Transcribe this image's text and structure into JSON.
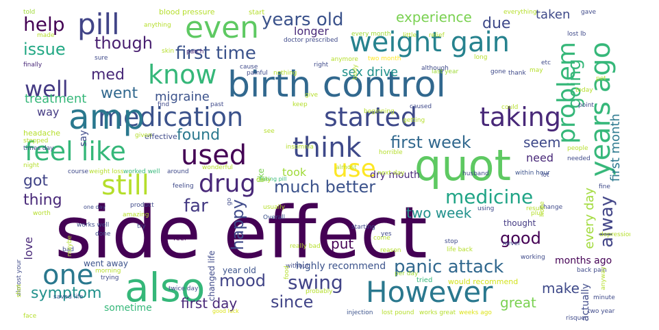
{
  "words": [
    {
      "text": "side effect",
      "color": "#440154"
    },
    {
      "text": "birth control",
      "color": "#31688e"
    },
    {
      "text": "medication",
      "color": "#3b528b"
    },
    {
      "text": "weight gain",
      "color": "#26828e"
    },
    {
      "text": "amp",
      "color": "#2a788e"
    },
    {
      "text": "quot",
      "color": "#5ec962"
    },
    {
      "text": "problem",
      "color": "#35b779"
    },
    {
      "text": "also",
      "color": "#35b779"
    },
    {
      "text": "However",
      "color": "#2a788e"
    },
    {
      "text": "started",
      "color": "#3e4989"
    },
    {
      "text": "taking",
      "color": "#482878"
    },
    {
      "text": "used",
      "color": "#440154"
    },
    {
      "text": "feel like",
      "color": "#35b779"
    },
    {
      "text": "pill",
      "color": "#414487"
    },
    {
      "text": "even",
      "color": "#5ec962"
    },
    {
      "text": "still",
      "color": "#b5de2b"
    },
    {
      "text": "drug",
      "color": "#482878"
    },
    {
      "text": "know",
      "color": "#35b779"
    },
    {
      "text": "well",
      "color": "#443a83"
    },
    {
      "text": "think",
      "color": "#3e4989"
    },
    {
      "text": "years ago",
      "color": "#35b779"
    },
    {
      "text": "use",
      "color": "#fde725"
    },
    {
      "text": "medicine",
      "color": "#20a486"
    },
    {
      "text": "one",
      "color": "#2a788e"
    },
    {
      "text": "panic attack",
      "color": "#31688e"
    },
    {
      "text": "first time",
      "color": "#3b528b"
    },
    {
      "text": "help",
      "color": "#440154"
    },
    {
      "text": "mood",
      "color": "#414487"
    },
    {
      "text": "swing",
      "color": "#414487"
    },
    {
      "text": "much better",
      "color": "#3b528b"
    },
    {
      "text": "symptom",
      "color": "#21918c"
    },
    {
      "text": "since",
      "color": "#414487"
    },
    {
      "text": "years old",
      "color": "#3b528b"
    },
    {
      "text": "though",
      "color": "#481f70"
    },
    {
      "text": "going",
      "color": "#35b779"
    },
    {
      "text": "alway",
      "color": "#414487"
    },
    {
      "text": "happy",
      "color": "#3e4989"
    },
    {
      "text": "first week",
      "color": "#31688e"
    },
    {
      "text": "issue",
      "color": "#22a884"
    },
    {
      "text": "found",
      "color": "#2a788e"
    },
    {
      "text": "far",
      "color": "#443a83"
    },
    {
      "text": "got",
      "color": "#414487"
    },
    {
      "text": "thing",
      "color": "#482878"
    },
    {
      "text": "good",
      "color": "#440154"
    },
    {
      "text": "due",
      "color": "#3e4989"
    },
    {
      "text": "med",
      "color": "#482878"
    },
    {
      "text": "went",
      "color": "#31688e"
    },
    {
      "text": "seem",
      "color": "#3e4989"
    },
    {
      "text": "two week",
      "color": "#21918c"
    },
    {
      "text": "experience",
      "color": "#7ad151"
    },
    {
      "text": "taken",
      "color": "#3e4989"
    },
    {
      "text": "first day",
      "color": "#482878"
    },
    {
      "text": "sex drive",
      "color": "#21918c"
    },
    {
      "text": "migraine",
      "color": "#3b528b"
    },
    {
      "text": "treatment",
      "color": "#35b779"
    },
    {
      "text": "make",
      "color": "#3e4989"
    },
    {
      "text": "great",
      "color": "#7ad151"
    },
    {
      "text": "put",
      "color": "#440154"
    },
    {
      "text": "love",
      "color": "#482878"
    },
    {
      "text": "say",
      "color": "#3e4989"
    },
    {
      "text": "took",
      "color": "#a0da39"
    },
    {
      "text": "need",
      "color": "#482878"
    },
    {
      "text": "first month",
      "color": "#2a788e"
    },
    {
      "text": "every day",
      "color": "#a0da39"
    },
    {
      "text": "longer",
      "color": "#482878"
    },
    {
      "text": "way",
      "color": "#443a83"
    },
    {
      "text": "highly recommend",
      "color": "#3b528b"
    },
    {
      "text": "sometime",
      "color": "#35b779"
    },
    {
      "text": "actually",
      "color": "#3e4989"
    },
    {
      "text": "months ago",
      "color": "#440154"
    },
    {
      "text": "headache",
      "color": "#b5de2b"
    },
    {
      "text": "effective",
      "color": "#3e4989"
    },
    {
      "text": "feel",
      "color": "#440154"
    },
    {
      "text": "like",
      "color": "#7ad151"
    },
    {
      "text": "dry mouth",
      "color": "#482878"
    },
    {
      "text": "thought",
      "color": "#443a83"
    },
    {
      "text": "changed life",
      "color": "#3e4989"
    },
    {
      "text": "year old",
      "color": "#3b528b"
    },
    {
      "text": "went away",
      "color": "#3b528b"
    },
    {
      "text": "blood pressure",
      "color": "#b5de2b"
    },
    {
      "text": "start",
      "color": "#b5de2b"
    },
    {
      "text": "doctor prescribed",
      "color": "#3e4989"
    },
    {
      "text": "weight loss",
      "color": "#b5de2b"
    },
    {
      "text": "worked well",
      "color": "#35b779"
    },
    {
      "text": "Overall",
      "color": "#3b528b"
    },
    {
      "text": "would recommend",
      "color": "#d2e21b"
    },
    {
      "text": "tried",
      "color": "#35b779"
    },
    {
      "text": "back pain",
      "color": "#3e4989"
    },
    {
      "text": "two year",
      "color": "#3e4989"
    },
    {
      "text": "good luck",
      "color": "#dde318"
    },
    {
      "text": "injection",
      "color": "#3b528b"
    },
    {
      "text": "lost pound",
      "color": "#b5de2b"
    },
    {
      "text": "works great",
      "color": "#b5de2b"
    },
    {
      "text": "weeks ago",
      "color": "#dde318"
    },
    {
      "text": "twice day",
      "color": "#3e4989"
    },
    {
      "text": "within hour",
      "color": "#3b528b"
    },
    {
      "text": "next day",
      "color": "#b5de2b"
    },
    {
      "text": "one day",
      "color": "#3e4989"
    },
    {
      "text": "works well",
      "color": "#3e4989"
    },
    {
      "text": "saved life",
      "color": "#3b528b"
    },
    {
      "text": "taking pill",
      "color": "#35b779"
    },
    {
      "text": "per day",
      "color": "#a0da39"
    },
    {
      "text": "really bad",
      "color": "#b5de2b"
    },
    {
      "text": "last year",
      "color": "#a0da39"
    },
    {
      "text": "every month",
      "color": "#a0da39"
    },
    {
      "text": "lost lb",
      "color": "#3e4989"
    },
    {
      "text": "two month",
      "color": "#fde725"
    },
    {
      "text": "told",
      "color": "#a0da39"
    },
    {
      "text": "made",
      "color": "#b5de2b"
    },
    {
      "text": "finally",
      "color": "#482878"
    },
    {
      "text": "anything",
      "color": "#b5de2b"
    },
    {
      "text": "patch",
      "color": "#482878"
    },
    {
      "text": "skin",
      "color": "#b5de2b"
    },
    {
      "text": "sure",
      "color": "#3e4989"
    },
    {
      "text": "cause",
      "color": "#3e4989"
    },
    {
      "text": "painful",
      "color": "#3e4989"
    },
    {
      "text": "nothing",
      "color": "#b5de2b"
    },
    {
      "text": "right",
      "color": "#3e4989"
    },
    {
      "text": "anymore",
      "color": "#b5de2b"
    },
    {
      "text": "although",
      "color": "#3e4989"
    },
    {
      "text": "gone",
      "color": "#3e4989"
    },
    {
      "text": "may",
      "color": "#b5de2b"
    },
    {
      "text": "thank",
      "color": "#3e4989"
    },
    {
      "text": "etc",
      "color": "#3e4989"
    },
    {
      "text": "little",
      "color": "#b5de2b"
    },
    {
      "text": "relief",
      "color": "#b5de2b"
    },
    {
      "text": "everything",
      "color": "#b5de2b"
    },
    {
      "text": "gave",
      "color": "#3e4989"
    },
    {
      "text": "long",
      "color": "#b5de2b"
    },
    {
      "text": "give",
      "color": "#b5de2b"
    },
    {
      "text": "find",
      "color": "#3e4989"
    },
    {
      "text": "past",
      "color": "#3e4989"
    },
    {
      "text": "keep",
      "color": "#b5de2b"
    },
    {
      "text": "caused",
      "color": "#3e4989"
    },
    {
      "text": "could",
      "color": "#b5de2b"
    },
    {
      "text": "beginning",
      "color": "#b5de2b"
    },
    {
      "text": "getting",
      "color": "#b5de2b"
    },
    {
      "text": "horrible",
      "color": "#b5de2b"
    },
    {
      "text": "almost",
      "color": "#b5de2b"
    },
    {
      "text": "daily",
      "color": "#b5de2b"
    },
    {
      "text": "insomnia",
      "color": "#b5de2b"
    },
    {
      "text": "see",
      "color": "#b5de2b"
    },
    {
      "text": "given",
      "color": "#b5de2b"
    },
    {
      "text": "stopped",
      "color": "#b5de2b"
    },
    {
      "text": "times day",
      "color": "#3e4989"
    },
    {
      "text": "night",
      "color": "#b5de2b"
    },
    {
      "text": "course",
      "color": "#3e4989"
    },
    {
      "text": "around",
      "color": "#3e4989"
    },
    {
      "text": "wonderful",
      "color": "#b5de2b"
    },
    {
      "text": "feeling",
      "color": "#3e4989"
    },
    {
      "text": "worth",
      "color": "#b5de2b"
    },
    {
      "text": "product",
      "color": "#3e4989"
    },
    {
      "text": "amazing",
      "color": "#b5de2b"
    },
    {
      "text": "done",
      "color": "#3e4989"
    },
    {
      "text": "try",
      "color": "#3e4989"
    },
    {
      "text": "bad",
      "color": "#3e4989"
    },
    {
      "text": "morning",
      "color": "#b5de2b"
    },
    {
      "text": "trying",
      "color": "#3e4989"
    },
    {
      "text": "face",
      "color": "#b5de2b"
    },
    {
      "text": "usually",
      "color": "#b5de2b"
    },
    {
      "text": "starting",
      "color": "#3e4989"
    },
    {
      "text": "come",
      "color": "#b5de2b"
    },
    {
      "text": "reason",
      "color": "#b5de2b"
    },
    {
      "text": "probably",
      "color": "#b5de2b"
    },
    {
      "text": "husband",
      "color": "#3e4989"
    },
    {
      "text": "using",
      "color": "#3e4989"
    },
    {
      "text": "result",
      "color": "#b5de2b"
    },
    {
      "text": "plus",
      "color": "#b5de2b"
    },
    {
      "text": "stop",
      "color": "#3e4989"
    },
    {
      "text": "never",
      "color": "#3e4989"
    },
    {
      "text": "working",
      "color": "#3e4989"
    },
    {
      "text": "life back",
      "color": "#b5de2b"
    },
    {
      "text": "change",
      "color": "#3e4989"
    },
    {
      "text": "hope",
      "color": "#b5de2b"
    },
    {
      "text": "depression",
      "color": "#b5de2b"
    },
    {
      "text": "fine",
      "color": "#3e4989"
    },
    {
      "text": "lot",
      "color": "#3e4989"
    },
    {
      "text": "needed",
      "color": "#3e4989"
    },
    {
      "text": "people",
      "color": "#b5de2b"
    },
    {
      "text": "today",
      "color": "#b5de2b"
    },
    {
      "text": "pet",
      "color": "#b5de2b"
    },
    {
      "text": "point",
      "color": "#3e4989"
    },
    {
      "text": "risque",
      "color": "#3e4989"
    },
    {
      "text": "minute",
      "color": "#3e4989"
    },
    {
      "text": "body",
      "color": "#b5de2b"
    },
    {
      "text": "without",
      "color": "#3e4989"
    },
    {
      "text": "food",
      "color": "#b5de2b"
    },
    {
      "text": "yes",
      "color": "#3e4989"
    },
    {
      "text": "go",
      "color": "#3e4989"
    },
    {
      "text": "almost your",
      "color": "#3e4989"
    },
    {
      "text": "shot",
      "color": "#b5de2b"
    },
    {
      "text": "maybe",
      "color": "#b5de2b"
    },
    {
      "text": "anyway",
      "color": "#b5de2b"
    },
    {
      "text": "free",
      "color": "#b5de2b"
    }
  ]
}
